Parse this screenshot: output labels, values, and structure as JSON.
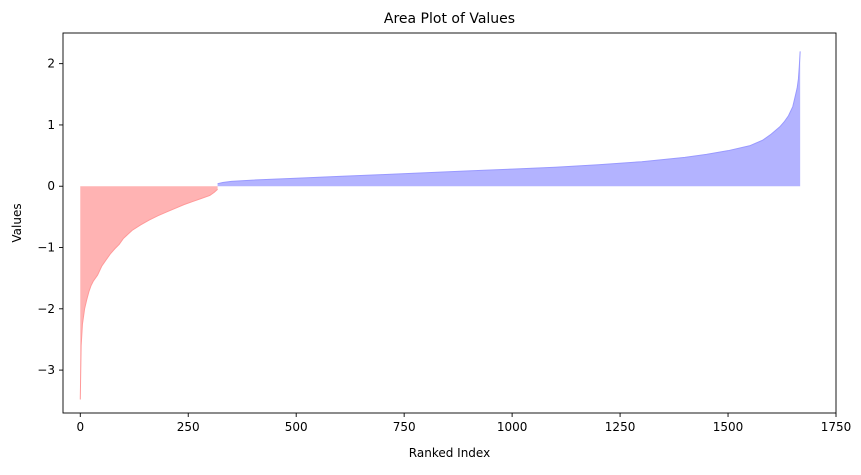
{
  "chart_data": {
    "type": "area",
    "title": "Area Plot of Values",
    "xlabel": "Ranked Index",
    "ylabel": "Values",
    "xlim": [
      -40,
      1750
    ],
    "ylim": [
      -3.7,
      2.5
    ],
    "xticks": [
      0,
      250,
      500,
      750,
      1000,
      1250,
      1500,
      1750
    ],
    "yticks": [
      -3,
      -2,
      -1,
      0,
      1,
      2
    ],
    "grid": false,
    "colors": {
      "negative": "#ff9999",
      "positive": "#9999ff"
    },
    "series": [
      {
        "fill": "negative",
        "x": [
          0,
          2,
          5,
          10,
          15,
          20,
          25,
          30,
          40,
          50,
          60,
          70,
          80,
          90,
          100,
          120,
          140,
          160,
          180,
          200,
          220,
          240,
          260,
          280,
          300,
          310,
          318
        ],
        "y": [
          -3.48,
          -2.6,
          -2.25,
          -2.0,
          -1.85,
          -1.72,
          -1.62,
          -1.55,
          -1.45,
          -1.3,
          -1.2,
          -1.1,
          -1.02,
          -0.95,
          -0.85,
          -0.72,
          -0.63,
          -0.55,
          -0.48,
          -0.42,
          -0.36,
          -0.3,
          -0.25,
          -0.2,
          -0.15,
          -0.1,
          -0.05
        ]
      },
      {
        "fill": "positive",
        "x": [
          318,
          330,
          350,
          400,
          500,
          600,
          700,
          800,
          900,
          1000,
          1100,
          1200,
          1300,
          1400,
          1450,
          1500,
          1550,
          1580,
          1600,
          1620,
          1630,
          1640,
          1650,
          1655,
          1660,
          1663,
          1665,
          1667
        ],
        "y": [
          0.04,
          0.06,
          0.08,
          0.1,
          0.13,
          0.16,
          0.19,
          0.22,
          0.25,
          0.28,
          0.31,
          0.35,
          0.4,
          0.47,
          0.52,
          0.58,
          0.66,
          0.75,
          0.85,
          0.97,
          1.05,
          1.15,
          1.3,
          1.45,
          1.6,
          1.75,
          1.95,
          2.2
        ]
      }
    ]
  }
}
